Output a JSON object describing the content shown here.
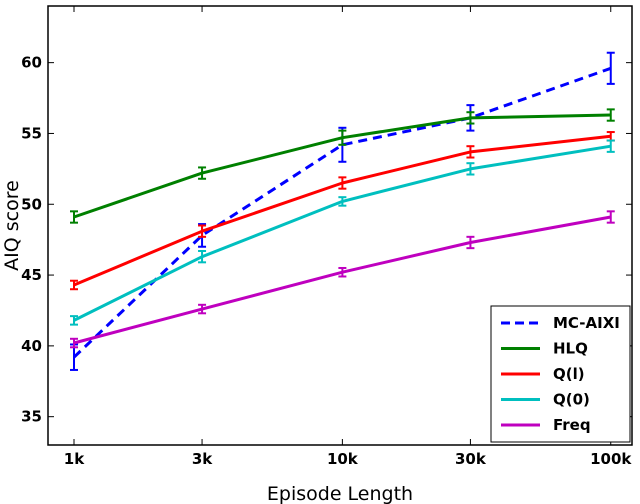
{
  "chart_data": {
    "type": "line",
    "xlabel": "Episode Length",
    "ylabel": "AIQ score",
    "x_scale": "log",
    "categories": [
      "1k",
      "3k",
      "10k",
      "30k",
      "100k"
    ],
    "x_values": [
      1000,
      3000,
      10000,
      30000,
      100000
    ],
    "xlim": [
      800,
      120000
    ],
    "ylim": [
      33,
      64
    ],
    "yticks": [
      35,
      40,
      45,
      50,
      55,
      60
    ],
    "grid": false,
    "legend_position": "bottom-right",
    "series": [
      {
        "name": "MC-AIXI",
        "color": "#0000ff",
        "dashed": true,
        "values": [
          39.2,
          47.8,
          54.2,
          56.1,
          59.6
        ],
        "errors": [
          0.9,
          0.8,
          1.2,
          0.9,
          1.1
        ]
      },
      {
        "name": "HLQ",
        "color": "#008000",
        "dashed": false,
        "values": [
          49.1,
          52.2,
          54.7,
          56.1,
          56.3
        ],
        "errors": [
          0.4,
          0.4,
          0.5,
          0.4,
          0.4
        ]
      },
      {
        "name": "Q(l)",
        "color": "#ff0000",
        "dashed": false,
        "values": [
          44.3,
          48.1,
          51.5,
          53.7,
          54.8
        ],
        "errors": [
          0.3,
          0.4,
          0.4,
          0.4,
          0.3
        ]
      },
      {
        "name": "Q(0)",
        "color": "#00bfbf",
        "dashed": false,
        "values": [
          41.8,
          46.3,
          50.2,
          52.5,
          54.1
        ],
        "errors": [
          0.3,
          0.4,
          0.3,
          0.4,
          0.4
        ]
      },
      {
        "name": "Freq",
        "color": "#bf00bf",
        "dashed": false,
        "values": [
          40.2,
          42.6,
          45.2,
          47.3,
          49.1
        ],
        "errors": [
          0.3,
          0.3,
          0.3,
          0.4,
          0.4
        ]
      }
    ]
  }
}
